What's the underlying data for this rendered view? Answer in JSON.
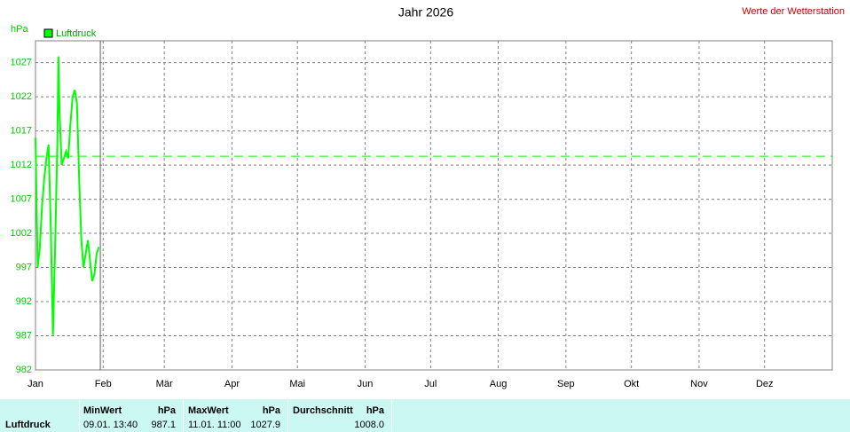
{
  "chart_data": {
    "type": "line",
    "title": "Jahr 2026",
    "subtitle": "Werte der Wetterstation",
    "y_label": "hPa",
    "xlim": [
      0,
      365
    ],
    "ylim": [
      982,
      1030.2
    ],
    "xticks": [
      {
        "value": 0,
        "label": "Jan"
      },
      {
        "value": 31,
        "label": "Feb"
      },
      {
        "value": 59,
        "label": "Mär"
      },
      {
        "value": 90,
        "label": "Apr"
      },
      {
        "value": 120,
        "label": "Mai"
      },
      {
        "value": 151,
        "label": "Jun"
      },
      {
        "value": 181,
        "label": "Jul"
      },
      {
        "value": 212,
        "label": "Aug"
      },
      {
        "value": 243,
        "label": "Sep"
      },
      {
        "value": 273,
        "label": "Okt"
      },
      {
        "value": 304,
        "label": "Nov"
      },
      {
        "value": 334,
        "label": "Dez"
      }
    ],
    "yticks": [
      982,
      987,
      992,
      997,
      1002,
      1007,
      1012,
      1017,
      1022,
      1027
    ],
    "grid": true,
    "reference_y": 1013.3,
    "marker_x": 29.7,
    "x": [
      0,
      1,
      2,
      3,
      4,
      5,
      6,
      7,
      8,
      9,
      10,
      10.5,
      11,
      12,
      13,
      14,
      15,
      16,
      17,
      18,
      19,
      20,
      21,
      22,
      23,
      24,
      25,
      26,
      27,
      28,
      29
    ],
    "series": [
      {
        "name": "Luftdruck",
        "color": "#00ff00",
        "values": [
          1016,
          997,
          1000,
          1006,
          1010,
          1013,
          1015,
          1003,
          987.1,
          1000,
          1015,
          1027.9,
          1020,
          1012,
          1013,
          1014,
          1013,
          1018,
          1022,
          1023,
          1021,
          1010,
          1001,
          997,
          999,
          1001,
          998,
          995,
          996,
          999,
          1000
        ]
      }
    ]
  },
  "stats": {
    "label": "Luftdruck",
    "min": {
      "header": "MinWert",
      "unit": "hPa",
      "time": "09.01.  13:40",
      "value": "987.1"
    },
    "max": {
      "header": "MaxWert",
      "unit": "hPa",
      "time": "11.01.  11:00",
      "value": "1027.9"
    },
    "avg": {
      "header": "Durchschnitt",
      "unit": "hPa",
      "value": "1008.0"
    }
  }
}
